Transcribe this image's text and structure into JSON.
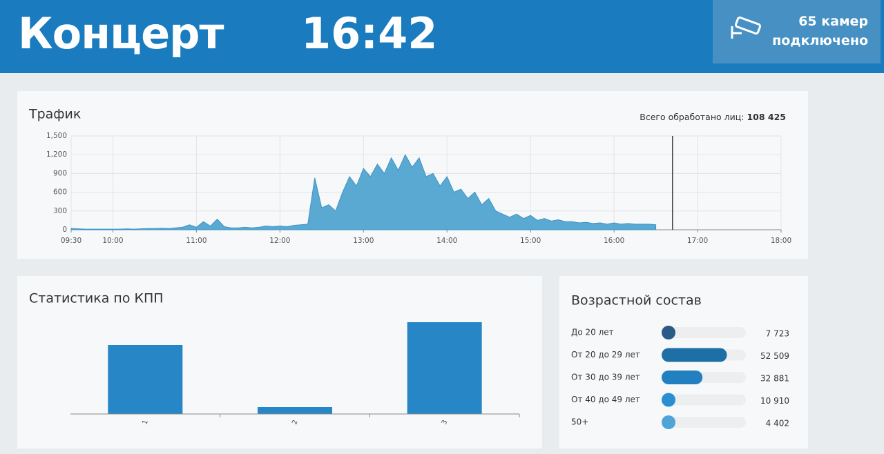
{
  "header": {
    "title": "Концерт",
    "time": "16:42",
    "cameras": [
      "65 камер",
      "подключено"
    ]
  },
  "chart_data": [
    {
      "type": "area",
      "title": "Трафик",
      "annotation": {
        "label": "Всего обработано лиц:",
        "value": "108 425"
      },
      "color": "#5aa9d2",
      "x": [
        "09:30",
        "09:35",
        "09:40",
        "09:45",
        "09:50",
        "09:55",
        "10:00",
        "10:05",
        "10:10",
        "10:15",
        "10:20",
        "10:25",
        "10:30",
        "10:35",
        "10:40",
        "10:45",
        "10:50",
        "10:55",
        "11:00",
        "11:05",
        "11:10",
        "11:15",
        "11:20",
        "11:25",
        "11:30",
        "11:35",
        "11:40",
        "11:45",
        "11:50",
        "11:55",
        "12:00",
        "12:05",
        "12:10",
        "12:15",
        "12:20",
        "12:25",
        "12:30",
        "12:35",
        "12:40",
        "12:45",
        "12:50",
        "12:55",
        "13:00",
        "13:05",
        "13:10",
        "13:15",
        "13:20",
        "13:25",
        "13:30",
        "13:35",
        "13:40",
        "13:45",
        "13:50",
        "13:55",
        "14:00",
        "14:05",
        "14:10",
        "14:15",
        "14:20",
        "14:25",
        "14:30",
        "14:35",
        "14:40",
        "14:45",
        "14:50",
        "14:55",
        "15:00",
        "15:05",
        "15:10",
        "15:15",
        "15:20",
        "15:25",
        "15:30",
        "15:35",
        "15:40",
        "15:45",
        "15:50",
        "15:55",
        "16:00",
        "16:05",
        "16:10",
        "16:15",
        "16:20",
        "16:25",
        "16:30"
      ],
      "values": [
        20,
        15,
        10,
        10,
        10,
        10,
        10,
        10,
        15,
        10,
        15,
        20,
        20,
        25,
        20,
        30,
        40,
        80,
        40,
        130,
        60,
        170,
        50,
        30,
        30,
        40,
        30,
        40,
        60,
        50,
        60,
        50,
        70,
        80,
        90,
        830,
        350,
        400,
        300,
        600,
        850,
        700,
        980,
        850,
        1050,
        900,
        1150,
        950,
        1200,
        1000,
        1150,
        850,
        900,
        700,
        850,
        600,
        650,
        500,
        600,
        400,
        500,
        300,
        250,
        200,
        250,
        180,
        230,
        150,
        180,
        140,
        160,
        130,
        130,
        110,
        120,
        100,
        110,
        90,
        110,
        90,
        100,
        90,
        90,
        90,
        80
      ],
      "xlim": [
        "09:30",
        "18:00"
      ],
      "xticks": [
        "09:30",
        "10:00",
        "11:00",
        "12:00",
        "13:00",
        "14:00",
        "15:00",
        "16:00",
        "17:00",
        "18:00"
      ],
      "ylim": [
        0,
        1500
      ],
      "yticks": [
        0,
        300,
        600,
        900,
        {
          "value": 1200,
          "label": "1,200"
        },
        {
          "value": 1500,
          "label": "1,500"
        }
      ],
      "grid": true
    },
    {
      "type": "bar",
      "title": "Статистика по КПП",
      "categories": [
        "1",
        "2",
        "3"
      ],
      "values": [
        100,
        10,
        133
      ],
      "color": "#2686c6"
    },
    {
      "type": "hbar",
      "title": "Возрастной состав",
      "categories": [
        "До 20 лет",
        "От 20 до 29 лет",
        "От 30 до 39 лет",
        "От 40 до 49 лет",
        "50+"
      ],
      "values": [
        7723,
        52509,
        32881,
        10910,
        4402
      ],
      "value_labels": [
        "7 723",
        "52 509",
        "32 881",
        "10 910",
        "4 402"
      ],
      "colors": [
        "#2a5a86",
        "#1d6fa6",
        "#2380c0",
        "#2b8ed0",
        "#4ea4d6"
      ]
    }
  ]
}
